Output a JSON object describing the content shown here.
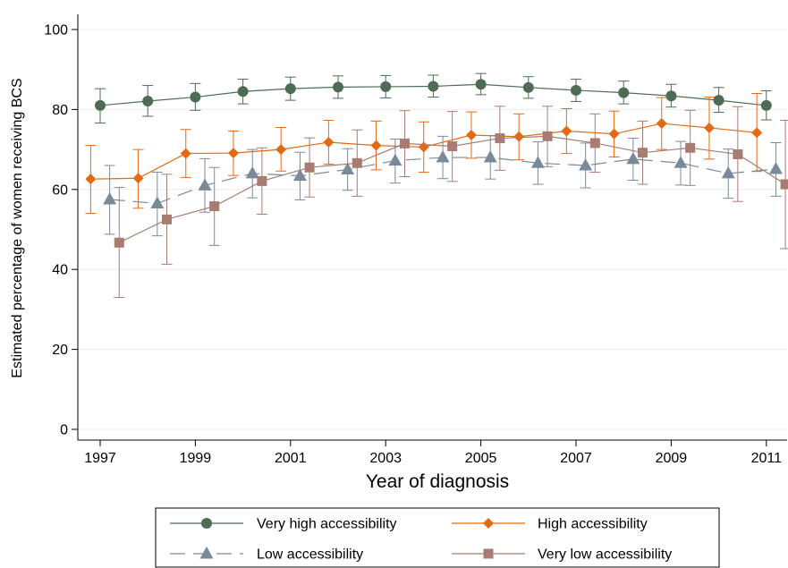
{
  "chart_data": {
    "type": "line",
    "xlabel": "Year of diagnosis",
    "ylabel": "Estimated percentage of women receiving BCS",
    "xlim": [
      1996.5,
      2011.5
    ],
    "ylim": [
      0,
      100
    ],
    "x_ticks": [
      1997,
      1999,
      2001,
      2003,
      2005,
      2007,
      2009,
      2011
    ],
    "y_ticks": [
      0,
      20,
      40,
      60,
      80,
      100
    ],
    "grid": "horizontal",
    "legend_position": "bottom",
    "series": [
      {
        "name": "Very high accessibility",
        "color": "#4e6b55",
        "marker": "circle",
        "dash": "solid",
        "points": [
          {
            "x": 1997.0,
            "y": 81.0,
            "lo": 76.6,
            "hi": 85.2
          },
          {
            "x": 1998.0,
            "y": 82.1,
            "lo": 78.3,
            "hi": 86.0
          },
          {
            "x": 1999.0,
            "y": 83.1,
            "lo": 79.8,
            "hi": 86.5
          },
          {
            "x": 2000.0,
            "y": 84.5,
            "lo": 81.4,
            "hi": 87.6
          },
          {
            "x": 2001.0,
            "y": 85.2,
            "lo": 82.3,
            "hi": 88.1
          },
          {
            "x": 2002.0,
            "y": 85.6,
            "lo": 82.8,
            "hi": 88.4
          },
          {
            "x": 2003.0,
            "y": 85.7,
            "lo": 82.9,
            "hi": 88.5
          },
          {
            "x": 2004.0,
            "y": 85.8,
            "lo": 83.1,
            "hi": 88.6
          },
          {
            "x": 2005.0,
            "y": 86.3,
            "lo": 83.7,
            "hi": 89.0
          },
          {
            "x": 2006.0,
            "y": 85.5,
            "lo": 82.8,
            "hi": 88.2
          },
          {
            "x": 2007.0,
            "y": 84.8,
            "lo": 82.0,
            "hi": 87.6
          },
          {
            "x": 2008.0,
            "y": 84.2,
            "lo": 81.4,
            "hi": 87.1
          },
          {
            "x": 2009.0,
            "y": 83.4,
            "lo": 80.6,
            "hi": 86.3
          },
          {
            "x": 2010.0,
            "y": 82.3,
            "lo": 79.3,
            "hi": 85.5
          },
          {
            "x": 2011.0,
            "y": 81.0,
            "lo": 77.4,
            "hi": 84.7
          }
        ]
      },
      {
        "name": "High accessibility",
        "color": "#e36a12",
        "marker": "diamond",
        "dash": "solid",
        "points": [
          {
            "x": 1996.8,
            "y": 62.6,
            "lo": 54.0,
            "hi": 71.0
          },
          {
            "x": 1997.8,
            "y": 62.8,
            "lo": 55.3,
            "hi": 70.0
          },
          {
            "x": 1998.8,
            "y": 69.0,
            "lo": 63.0,
            "hi": 75.0
          },
          {
            "x": 1999.8,
            "y": 69.1,
            "lo": 63.5,
            "hi": 74.6
          },
          {
            "x": 2000.8,
            "y": 70.0,
            "lo": 64.6,
            "hi": 75.5
          },
          {
            "x": 2001.8,
            "y": 71.8,
            "lo": 66.3,
            "hi": 77.3
          },
          {
            "x": 2002.8,
            "y": 71.0,
            "lo": 64.9,
            "hi": 77.1
          },
          {
            "x": 2003.8,
            "y": 70.6,
            "lo": 64.3,
            "hi": 76.9
          },
          {
            "x": 2004.8,
            "y": 73.6,
            "lo": 67.8,
            "hi": 79.4
          },
          {
            "x": 2005.8,
            "y": 73.2,
            "lo": 67.4,
            "hi": 78.9
          },
          {
            "x": 2006.8,
            "y": 74.6,
            "lo": 69.0,
            "hi": 80.2
          },
          {
            "x": 2007.8,
            "y": 73.9,
            "lo": 68.1,
            "hi": 79.6
          },
          {
            "x": 2008.8,
            "y": 76.5,
            "lo": 70.0,
            "hi": 83.0
          },
          {
            "x": 2009.8,
            "y": 75.4,
            "lo": 67.6,
            "hi": 83.1
          },
          {
            "x": 2010.8,
            "y": 74.2,
            "lo": 64.5,
            "hi": 84.0
          }
        ]
      },
      {
        "name": "Low accessibility",
        "color": "#7a8a99",
        "marker": "triangle",
        "dash": "long-dash",
        "points": [
          {
            "x": 1997.2,
            "y": 57.5,
            "lo": 48.8,
            "hi": 66.0
          },
          {
            "x": 1998.2,
            "y": 56.5,
            "lo": 48.4,
            "hi": 64.3
          },
          {
            "x": 1999.2,
            "y": 61.0,
            "lo": 54.3,
            "hi": 67.7
          },
          {
            "x": 2000.2,
            "y": 64.0,
            "lo": 57.9,
            "hi": 70.0
          },
          {
            "x": 2001.2,
            "y": 63.4,
            "lo": 57.4,
            "hi": 69.3
          },
          {
            "x": 2002.2,
            "y": 65.0,
            "lo": 59.8,
            "hi": 70.2
          },
          {
            "x": 2003.2,
            "y": 67.2,
            "lo": 61.6,
            "hi": 72.6
          },
          {
            "x": 2004.2,
            "y": 68.0,
            "lo": 62.7,
            "hi": 73.3
          },
          {
            "x": 2005.2,
            "y": 68.0,
            "lo": 62.6,
            "hi": 73.5
          },
          {
            "x": 2006.2,
            "y": 66.6,
            "lo": 61.3,
            "hi": 71.9
          },
          {
            "x": 2007.2,
            "y": 66.0,
            "lo": 60.4,
            "hi": 71.6
          },
          {
            "x": 2008.2,
            "y": 67.6,
            "lo": 62.3,
            "hi": 72.8
          },
          {
            "x": 2009.2,
            "y": 66.6,
            "lo": 61.1,
            "hi": 72.0
          },
          {
            "x": 2010.2,
            "y": 64.0,
            "lo": 57.8,
            "hi": 70.1
          },
          {
            "x": 2011.2,
            "y": 65.1,
            "lo": 58.3,
            "hi": 71.7
          }
        ]
      },
      {
        "name": "Very low accessibility",
        "color": "#a87c72",
        "marker": "square",
        "dash": "solid",
        "points": [
          {
            "x": 1997.4,
            "y": 46.7,
            "lo": 33.0,
            "hi": 60.5
          },
          {
            "x": 1998.4,
            "y": 52.5,
            "lo": 41.3,
            "hi": 63.8
          },
          {
            "x": 1999.4,
            "y": 55.8,
            "lo": 46.0,
            "hi": 65.5
          },
          {
            "x": 2000.4,
            "y": 62.1,
            "lo": 53.8,
            "hi": 70.4
          },
          {
            "x": 2001.4,
            "y": 65.5,
            "lo": 58.1,
            "hi": 72.9
          },
          {
            "x": 2002.4,
            "y": 66.6,
            "lo": 58.3,
            "hi": 74.9
          },
          {
            "x": 2003.4,
            "y": 71.5,
            "lo": 63.2,
            "hi": 79.7
          },
          {
            "x": 2004.4,
            "y": 70.8,
            "lo": 62.0,
            "hi": 79.5
          },
          {
            "x": 2005.4,
            "y": 72.8,
            "lo": 64.8,
            "hi": 80.8
          },
          {
            "x": 2006.4,
            "y": 73.3,
            "lo": 65.7,
            "hi": 80.8
          },
          {
            "x": 2007.4,
            "y": 71.6,
            "lo": 64.3,
            "hi": 78.9
          },
          {
            "x": 2008.4,
            "y": 69.2,
            "lo": 61.3,
            "hi": 77.1
          },
          {
            "x": 2009.4,
            "y": 70.4,
            "lo": 61.0,
            "hi": 79.8
          },
          {
            "x": 2010.4,
            "y": 68.8,
            "lo": 57.0,
            "hi": 80.7
          },
          {
            "x": 2011.4,
            "y": 61.3,
            "lo": 45.2,
            "hi": 77.3
          }
        ]
      }
    ]
  }
}
